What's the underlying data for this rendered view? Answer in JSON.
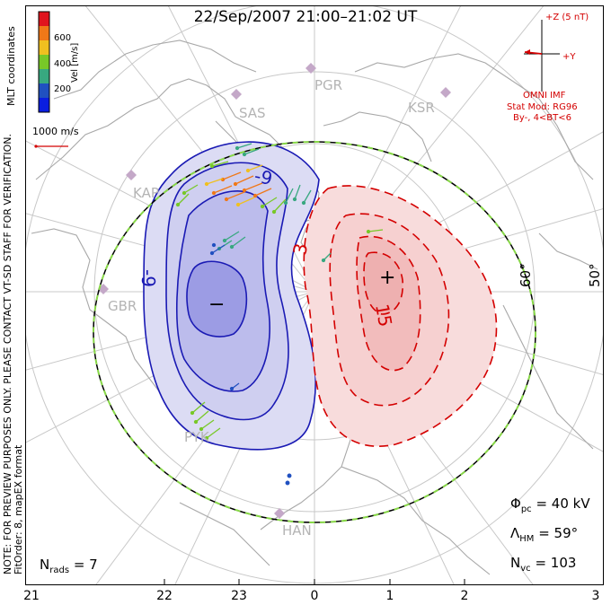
{
  "title": "22/Sep/2007 21:00–21:02 UT",
  "coords_label": "MLT coordinates",
  "colorbar": {
    "label": "Vel [m/s]",
    "ticks": [
      "600",
      "400",
      "200"
    ],
    "colors": [
      "#e0141e",
      "#f07818",
      "#f0c020",
      "#78c828",
      "#38a880",
      "#2050c0",
      "#0a1ee0"
    ]
  },
  "ref_vector": {
    "label": "1000 m/s",
    "color": "#d40000"
  },
  "imf": {
    "scale_label": "+Z (5 nT)",
    "y_label": "+Y",
    "source": "OMNI IMF",
    "model": "Stat Mod: RG96",
    "condition": "By-, 4<BT<6",
    "color": "#d40000"
  },
  "watermark": "NOTE: FOR PREVIEW PURPOSES ONLY. PLEASE CONTACT VT-SD STAFF FOR VERIFICATION.",
  "fit_order": "FitOrder: 8, mapEX format",
  "stations": [
    "PGR",
    "SAS",
    "KSR",
    "KAP",
    "GBR",
    "PYK",
    "HAN"
  ],
  "latitude_labels": [
    "60°",
    "50°"
  ],
  "contours": {
    "negative_labels": [
      "-9",
      "-9"
    ],
    "positive_labels": [
      "3",
      "15"
    ],
    "negative_color": "#1a1ab4",
    "positive_color": "#d40000",
    "negative_fill": "#c8c8f0",
    "positive_fill": "#f8d0d0"
  },
  "markers": {
    "minimum": "−",
    "maximum": "+"
  },
  "stats": {
    "phi_pc": {
      "symbol": "Φ",
      "sub": "pc",
      "value": "= 40 kV"
    },
    "lambda_hm": {
      "symbol": "Λ",
      "sub": "HM",
      "value": "= 59°"
    },
    "n_vc": {
      "symbol": "N",
      "sub": "vc",
      "value": "= 103"
    },
    "n_rads": {
      "symbol": "N",
      "sub": "rads",
      "value": "= 7"
    }
  },
  "mlt_ticks": [
    "21",
    "22",
    "23",
    "0",
    "1",
    "2",
    "3"
  ]
}
